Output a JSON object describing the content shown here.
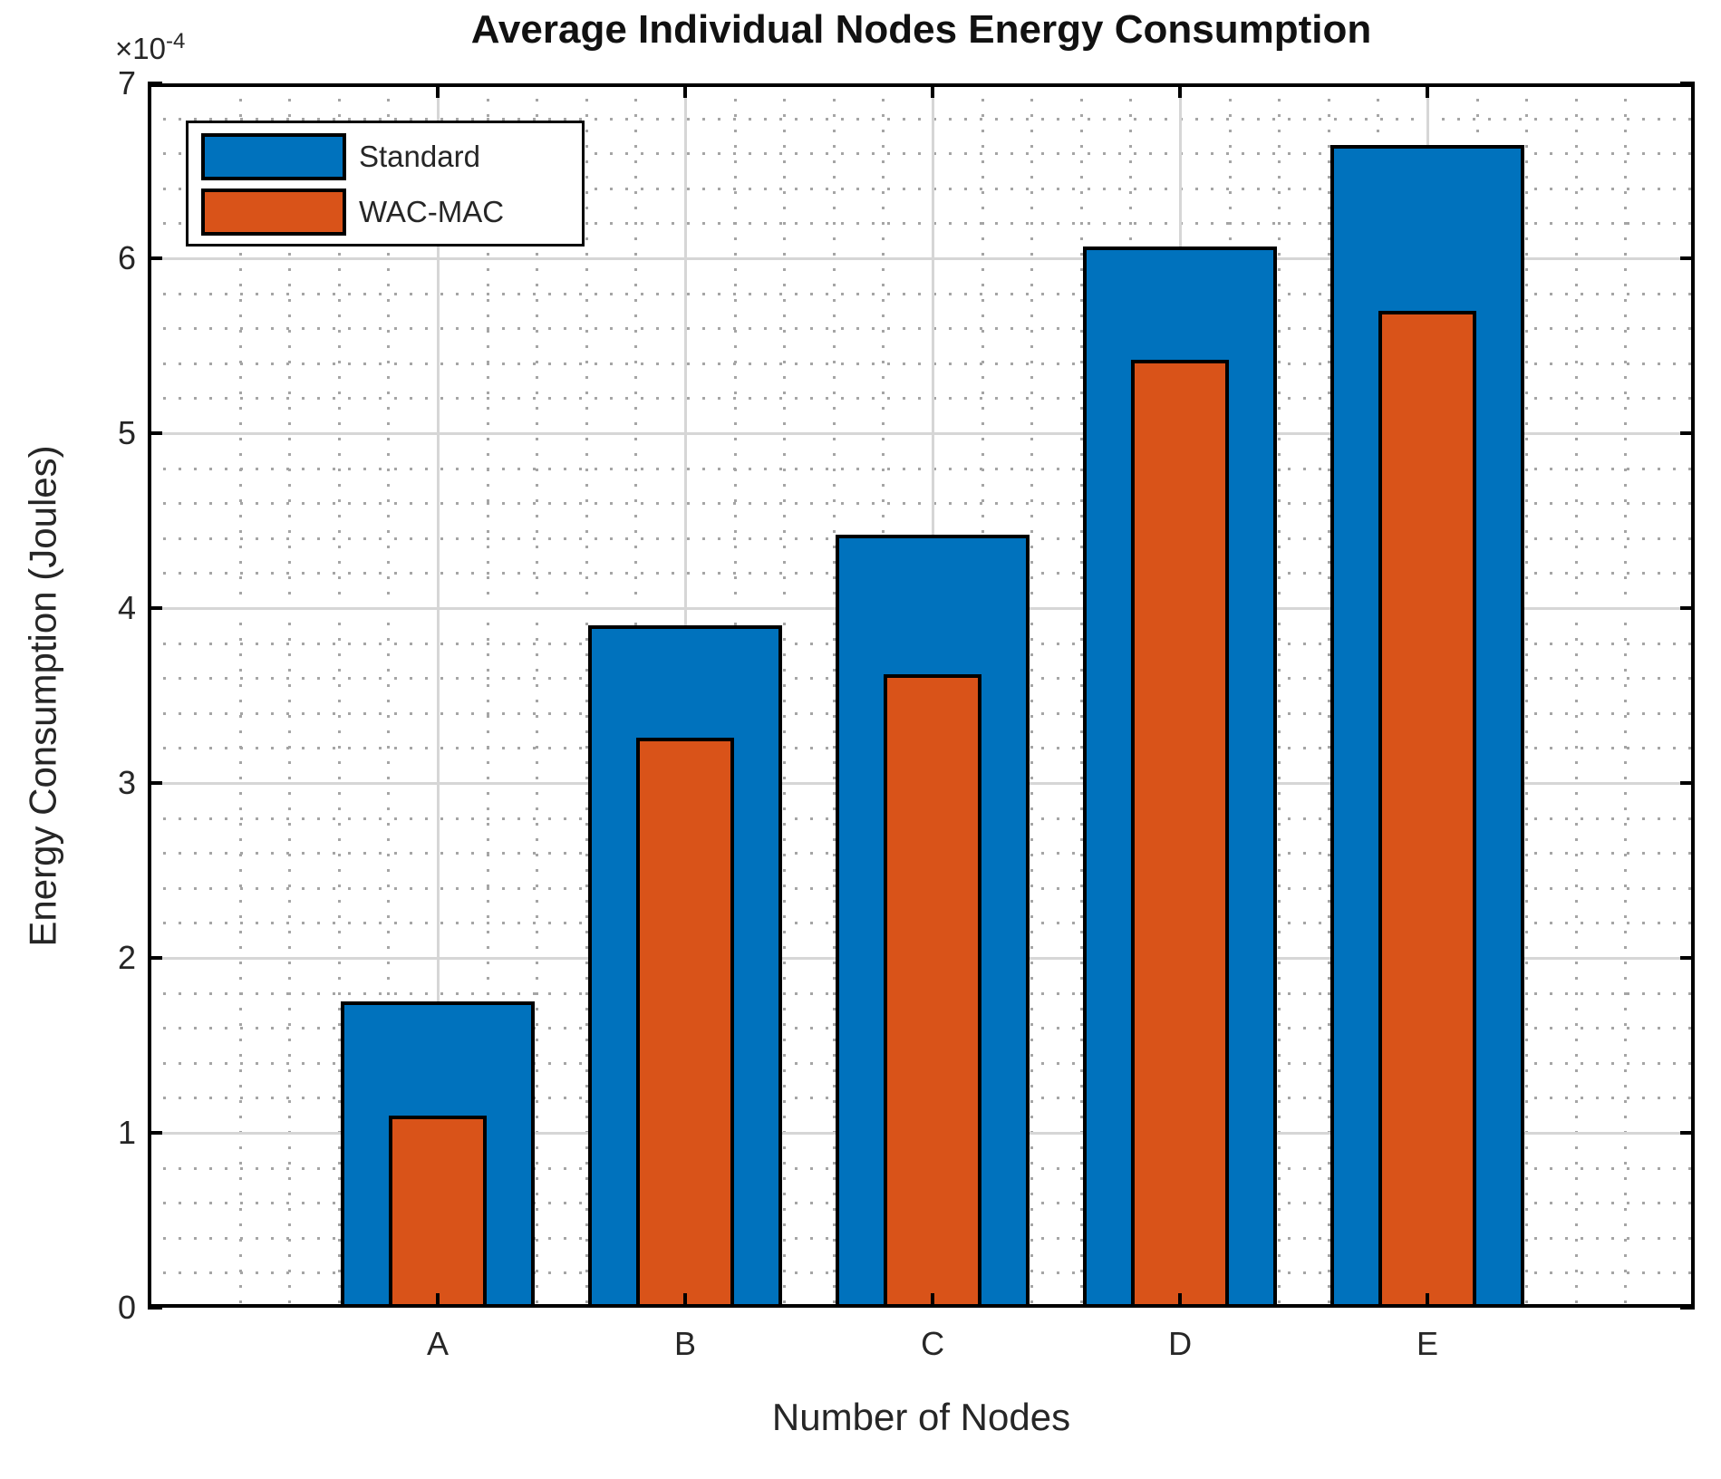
{
  "figure": {
    "title": "Average Individual Nodes Energy Consumption",
    "y_axis_offset": {
      "base": "×10",
      "exponent": "-4"
    }
  },
  "chart_data": {
    "type": "bar",
    "bar_style": "overlaid",
    "title": "Average Individual Nodes Energy Consumption",
    "xlabel": "Number of Nodes",
    "ylabel": "Energy Consumption (Joules)",
    "categories": [
      "A",
      "B",
      "C",
      "D",
      "E"
    ],
    "series": [
      {
        "name": "Standard",
        "color": "#0072BD",
        "values": [
          1.75,
          3.9,
          4.42,
          6.07,
          6.65
        ]
      },
      {
        "name": "WAC-MAC",
        "color": "#D95319",
        "values": [
          1.1,
          3.26,
          3.62,
          5.42,
          5.7
        ]
      }
    ],
    "value_scale": "1e-4",
    "value_unit": "Joules",
    "ylim": [
      0,
      7
    ],
    "yticks": [
      0,
      1,
      2,
      3,
      4,
      5,
      6,
      7
    ],
    "ytick_labels": [
      "0",
      "1",
      "2",
      "3",
      "4",
      "5",
      "6",
      "7"
    ],
    "grid": {
      "major": true,
      "minor_dotted": true,
      "minor_step_fraction": 0.2
    },
    "legend": {
      "position": "northwest",
      "entries": [
        "Standard",
        "WAC-MAC"
      ]
    }
  },
  "colors": {
    "standard_blue": "#0072BD",
    "wacmac_orange": "#D95319",
    "axis_black": "#000000",
    "major_grid": "#d6d6d6",
    "minor_grid": "#a5a5a5",
    "text": "#262626"
  }
}
